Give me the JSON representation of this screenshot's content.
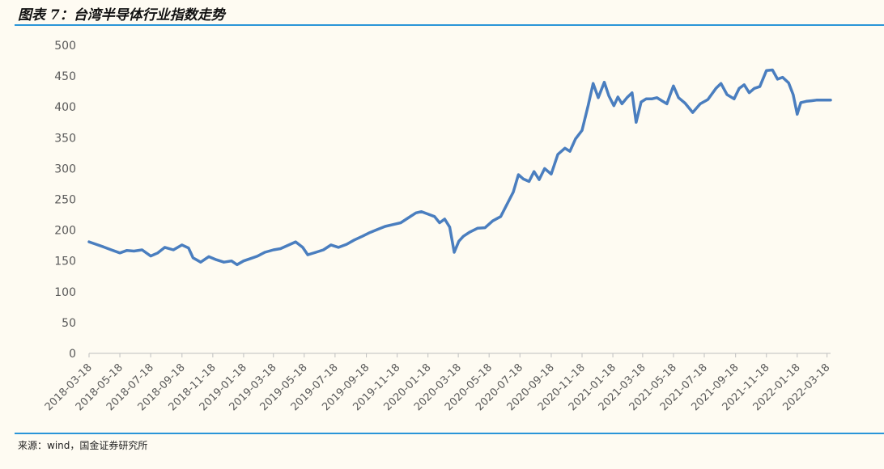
{
  "figure": {
    "title": "图表 7：台湾半导体行业指数走势",
    "source": "来源：wind，国金证券研究所"
  },
  "colors": {
    "line": "#4a7ebf",
    "rule": "#2a95d8",
    "axis": "#bfbfbf"
  },
  "chart_data": {
    "type": "line",
    "title": "",
    "xlabel": "",
    "ylabel": "",
    "ylim": [
      0,
      500
    ],
    "yticks": [
      0,
      50,
      100,
      150,
      200,
      250,
      300,
      350,
      400,
      450,
      500
    ],
    "xlim": [
      "2018-03-18",
      "2022-03-25"
    ],
    "xticks": [
      "2018-03-18",
      "2018-05-18",
      "2018-07-18",
      "2018-09-18",
      "2018-11-18",
      "2019-01-18",
      "2019-03-18",
      "2019-05-18",
      "2019-07-18",
      "2019-09-18",
      "2019-11-18",
      "2020-01-18",
      "2020-03-18",
      "2020-05-18",
      "2020-07-18",
      "2020-09-18",
      "2020-11-18",
      "2021-01-18",
      "2021-03-18",
      "2021-05-18",
      "2021-07-18",
      "2021-09-18",
      "2021-11-18",
      "2022-01-18",
      "2022-03-18"
    ],
    "grid": false,
    "legend": "none",
    "series": [
      {
        "x": [
          "2018-03-18",
          "2018-04-01",
          "2018-04-15",
          "2018-05-01",
          "2018-05-18",
          "2018-06-01",
          "2018-06-15",
          "2018-07-01",
          "2018-07-18",
          "2018-08-01",
          "2018-08-15",
          "2018-09-01",
          "2018-09-18",
          "2018-10-01",
          "2018-10-10",
          "2018-10-25",
          "2018-11-10",
          "2018-11-25",
          "2018-12-10",
          "2018-12-25",
          "2019-01-05",
          "2019-01-18",
          "2019-02-01",
          "2019-02-15",
          "2019-03-01",
          "2019-03-18",
          "2019-04-01",
          "2019-04-15",
          "2019-05-01",
          "2019-05-15",
          "2019-05-25",
          "2019-06-10",
          "2019-06-25",
          "2019-07-10",
          "2019-07-25",
          "2019-08-10",
          "2019-08-25",
          "2019-09-10",
          "2019-09-25",
          "2019-10-10",
          "2019-10-25",
          "2019-11-10",
          "2019-11-25",
          "2019-12-10",
          "2019-12-25",
          "2020-01-05",
          "2020-01-18",
          "2020-01-31",
          "2020-02-10",
          "2020-02-20",
          "2020-03-01",
          "2020-03-10",
          "2020-03-19",
          "2020-03-28",
          "2020-04-10",
          "2020-04-25",
          "2020-05-10",
          "2020-05-25",
          "2020-06-10",
          "2020-06-25",
          "2020-07-05",
          "2020-07-15",
          "2020-07-25",
          "2020-08-05",
          "2020-08-15",
          "2020-08-25",
          "2020-09-05",
          "2020-09-18",
          "2020-10-01",
          "2020-10-15",
          "2020-10-25",
          "2020-11-05",
          "2020-11-18",
          "2020-11-30",
          "2020-12-10",
          "2020-12-20",
          "2021-01-01",
          "2021-01-10",
          "2021-01-20",
          "2021-01-28",
          "2021-02-05",
          "2021-02-15",
          "2021-02-25",
          "2021-03-05",
          "2021-03-15",
          "2021-03-25",
          "2021-04-05",
          "2021-04-15",
          "2021-04-25",
          "2021-05-05",
          "2021-05-12",
          "2021-05-18",
          "2021-05-28",
          "2021-06-10",
          "2021-06-25",
          "2021-07-10",
          "2021-07-25",
          "2021-08-10",
          "2021-08-20",
          "2021-09-01",
          "2021-09-15",
          "2021-09-25",
          "2021-10-05",
          "2021-10-15",
          "2021-10-25",
          "2021-11-05",
          "2021-11-18",
          "2021-11-30",
          "2021-12-10",
          "2021-12-20",
          "2022-01-01",
          "2022-01-10",
          "2022-01-18",
          "2022-01-25",
          "2022-02-05",
          "2022-02-15",
          "2022-02-25",
          "2022-03-05",
          "2022-03-10",
          "2022-03-15",
          "2022-03-20",
          "2022-03-25"
        ],
        "y": [
          181,
          177,
          173,
          168,
          163,
          167,
          166,
          168,
          158,
          163,
          172,
          168,
          176,
          171,
          155,
          148,
          157,
          152,
          148,
          150,
          144,
          150,
          154,
          158,
          164,
          168,
          170,
          175,
          181,
          172,
          160,
          164,
          168,
          176,
          172,
          177,
          184,
          190,
          196,
          201,
          206,
          209,
          212,
          220,
          228,
          230,
          226,
          222,
          212,
          218,
          205,
          164,
          182,
          190,
          197,
          203,
          204,
          215,
          222,
          246,
          262,
          290,
          283,
          279,
          295,
          282,
          300,
          291,
          323,
          333,
          328,
          348,
          362,
          402,
          438,
          415,
          440,
          418,
          402,
          416,
          405,
          415,
          423,
          375,
          408,
          413,
          413,
          415,
          410,
          405,
          421,
          434,
          415,
          406,
          391,
          405,
          412,
          430,
          438,
          420,
          413,
          430,
          436,
          423,
          430,
          433,
          459,
          460,
          445,
          448,
          439,
          420,
          388,
          407,
          409,
          410,
          411,
          411,
          411,
          411,
          411,
          411
        ]
      }
    ]
  }
}
